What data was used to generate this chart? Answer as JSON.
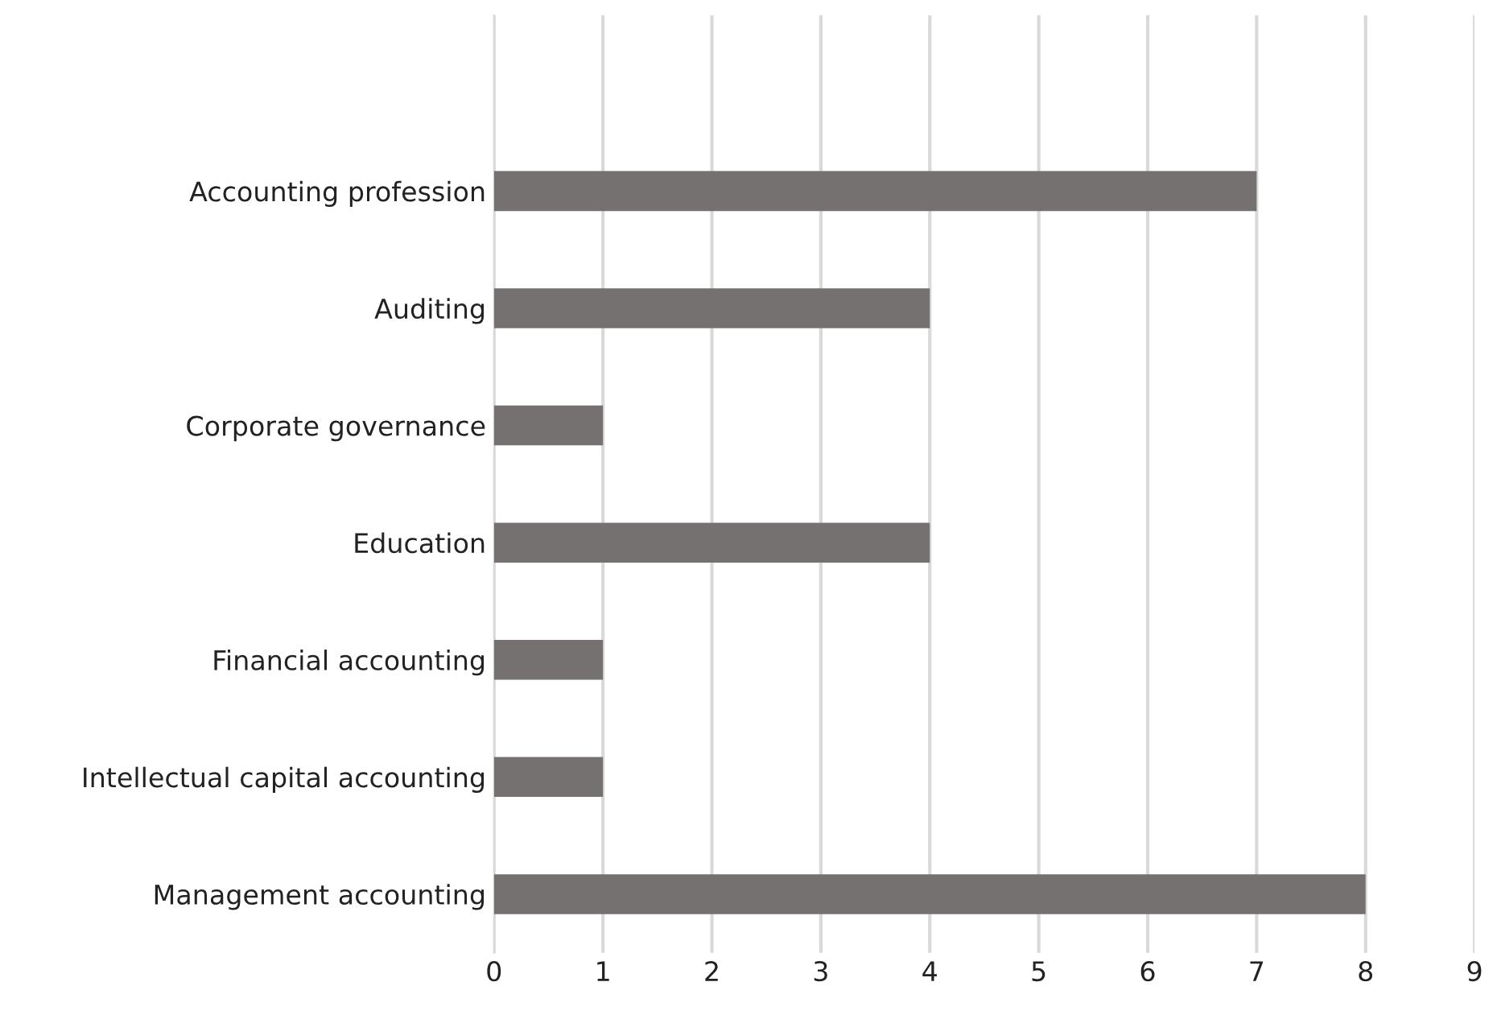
{
  "chart_data": {
    "type": "bar",
    "orientation": "horizontal",
    "categories": [
      "Accounting profession",
      "Auditing",
      "Corporate governance",
      "Education",
      "Financial accounting",
      "Intellectual capital accounting",
      "Management accounting"
    ],
    "values": [
      7,
      4,
      1,
      4,
      1,
      1,
      8
    ],
    "color": "#767171",
    "xlim": [
      0,
      9
    ],
    "xticks": [
      0,
      1,
      2,
      3,
      4,
      5,
      6,
      7,
      8,
      9
    ],
    "grid": "x",
    "legend": false
  }
}
